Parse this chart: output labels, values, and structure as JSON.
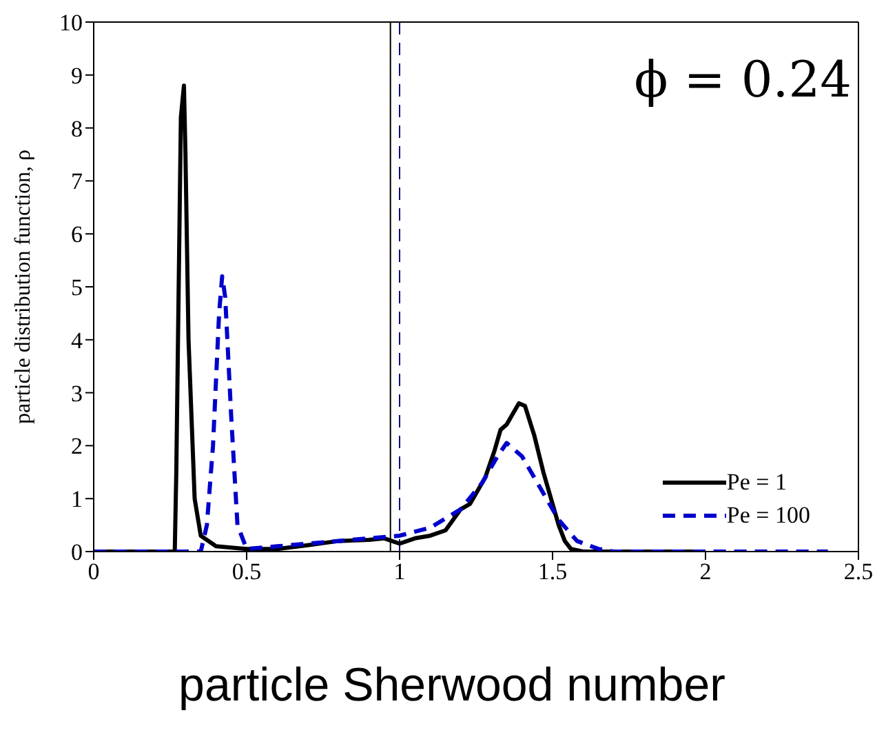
{
  "chart_data": {
    "type": "line",
    "xlabel": "particle Sherwood number",
    "ylabel": "particle distribution function, ρ",
    "annotations": [
      "ϕ = 0.24"
    ],
    "xlim": [
      0,
      2.5
    ],
    "xticks": [
      0,
      0.5,
      1,
      1.5,
      2,
      2.5
    ],
    "ylim": [
      0,
      10
    ],
    "yticks": [
      0,
      1,
      2,
      3,
      4,
      5,
      6,
      7,
      8,
      9,
      10
    ],
    "legend": "right",
    "marker": "none",
    "ref_lines": [
      {
        "axis": "x",
        "value": 0.97,
        "color": "#000000",
        "line_style": "solid"
      },
      {
        "axis": "x",
        "value": 1.0,
        "color": "#000080",
        "line_style": "dashed"
      }
    ],
    "series": [
      {
        "name": "Pe = 1",
        "color": "#000000",
        "line_style": "solid",
        "x": [
          0,
          0.265,
          0.27,
          0.285,
          0.295,
          0.3,
          0.31,
          0.33,
          0.35,
          0.4,
          0.5,
          0.6,
          0.7,
          0.8,
          0.9,
          0.95,
          1.0,
          1.05,
          1.1,
          1.15,
          1.2,
          1.23,
          1.28,
          1.31,
          1.33,
          1.35,
          1.37,
          1.39,
          1.41,
          1.44,
          1.47,
          1.5,
          1.52,
          1.54,
          1.56,
          1.6,
          1.8,
          2.0
        ],
        "values": [
          0,
          0,
          1.5,
          8.2,
          8.8,
          7.5,
          4,
          1,
          0.3,
          0.1,
          0.05,
          0.05,
          0.12,
          0.2,
          0.22,
          0.25,
          0.15,
          0.25,
          0.3,
          0.4,
          0.8,
          0.9,
          1.4,
          1.9,
          2.3,
          2.4,
          2.6,
          2.8,
          2.75,
          2.2,
          1.5,
          0.9,
          0.5,
          0.2,
          0.05,
          0,
          0,
          0
        ]
      },
      {
        "name": "Pe = 100",
        "color": "#0000cc",
        "line_style": "dashed",
        "x": [
          0,
          0.35,
          0.37,
          0.39,
          0.41,
          0.42,
          0.43,
          0.45,
          0.47,
          0.5,
          0.6,
          0.7,
          0.8,
          0.9,
          1.0,
          1.1,
          1.2,
          1.27,
          1.32,
          1.35,
          1.4,
          1.46,
          1.52,
          1.58,
          1.65,
          1.7,
          2.0,
          2.4
        ],
        "values": [
          0,
          0,
          0.5,
          2,
          4.5,
          5.2,
          4.8,
          2.5,
          0.5,
          0.05,
          0.1,
          0.15,
          0.2,
          0.25,
          0.3,
          0.45,
          0.8,
          1.3,
          1.8,
          2.05,
          1.8,
          1.2,
          0.6,
          0.2,
          0.05,
          0,
          0,
          0
        ]
      }
    ]
  }
}
